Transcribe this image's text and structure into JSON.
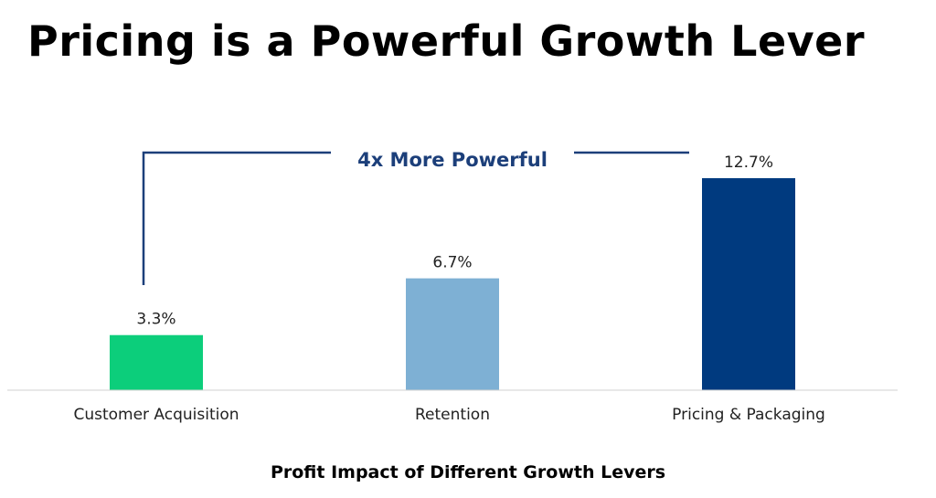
{
  "title": "Pricing is a Powerful Growth Lever",
  "chart_data": {
    "type": "bar",
    "title": "Profit Impact of Different Growth Levers",
    "categories": [
      "Customer Acquisition",
      "Retention",
      "Pricing & Packaging"
    ],
    "values": [
      3.3,
      6.7,
      12.7
    ],
    "value_labels": [
      "3.3%",
      "6.7%",
      "12.7%"
    ],
    "colors": [
      "#0cce7b",
      "#7eb0d4",
      "#003a7f"
    ],
    "ylim": [
      0,
      12.7
    ],
    "grid": false,
    "annotation": {
      "text": "4x More Powerful",
      "from": "Customer Acquisition",
      "to": "Pricing & Packaging",
      "color": "#1c3f7a"
    }
  }
}
